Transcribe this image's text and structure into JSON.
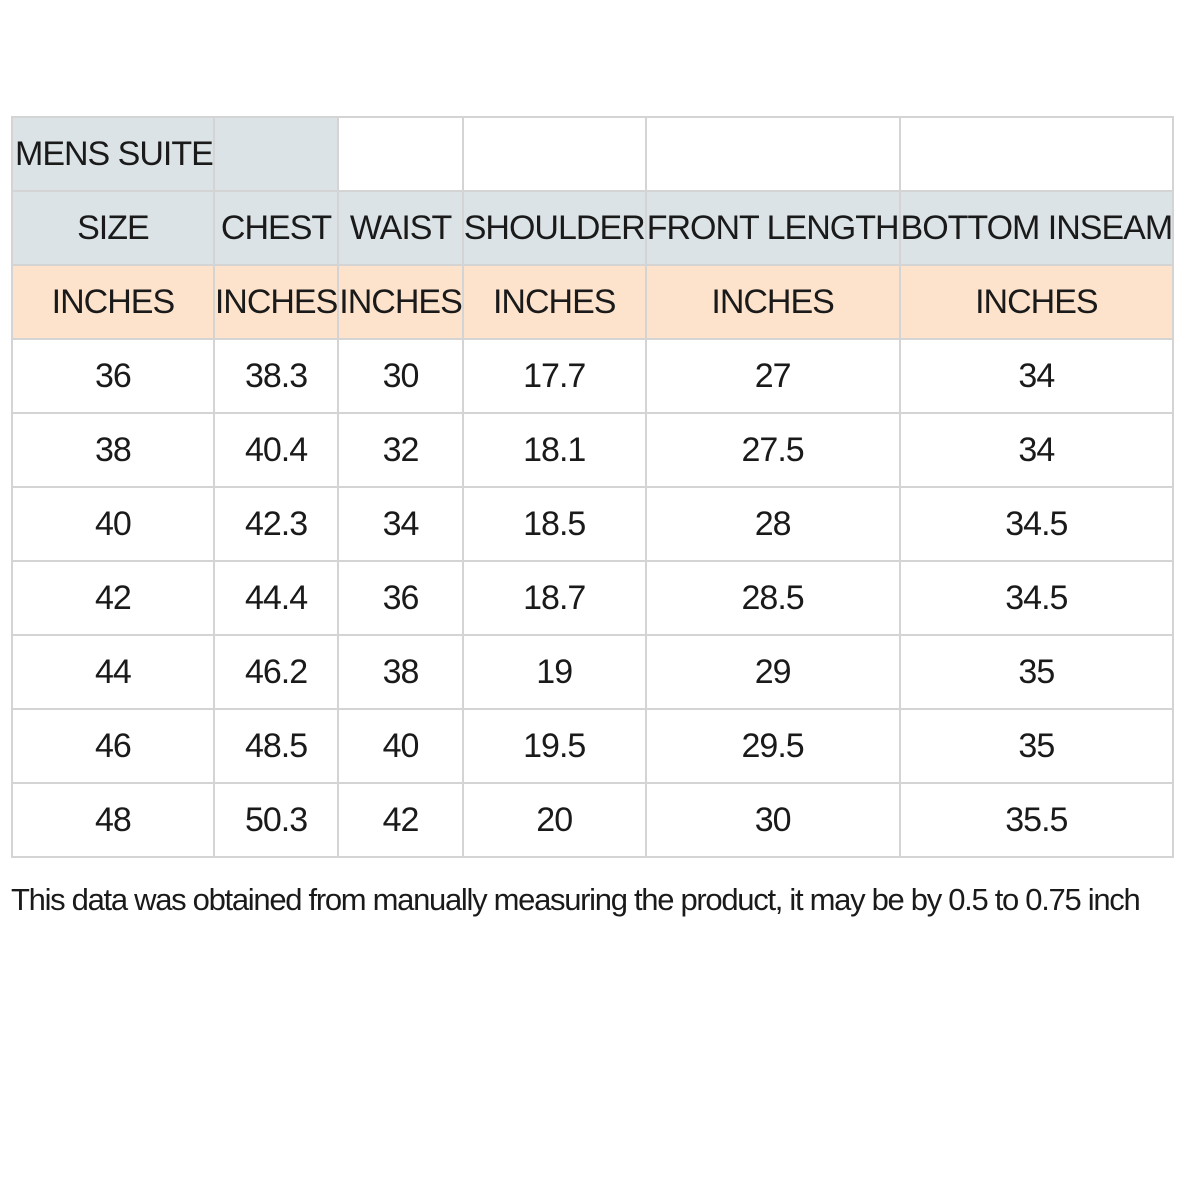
{
  "table": {
    "title": "MENS SUITE",
    "headers": [
      "SIZE",
      "CHEST",
      "WAIST",
      "SHOULDER",
      "FRONT LENGTH",
      "BOTTOM INSEAM"
    ],
    "units": [
      "INCHES",
      "INCHES",
      "INCHES",
      "INCHES",
      "INCHES",
      "INCHES"
    ],
    "rows": [
      [
        "36",
        "38.3",
        "30",
        "17.7",
        "27",
        "34"
      ],
      [
        "38",
        "40.4",
        "32",
        "18.1",
        "27.5",
        "34"
      ],
      [
        "40",
        "42.3",
        "34",
        "18.5",
        "28",
        "34.5"
      ],
      [
        "42",
        "44.4",
        "36",
        "18.7",
        "28.5",
        "34.5"
      ],
      [
        "44",
        "46.2",
        "38",
        "19",
        "29",
        "35"
      ],
      [
        "46",
        "48.5",
        "40",
        "19.5",
        "29.5",
        "35"
      ],
      [
        "48",
        "50.3",
        "42",
        "20",
        "30",
        "35.5"
      ]
    ]
  },
  "footnote": "This data was obtained from manually measuring the product, it may be by 0.5 to 0.75 inch",
  "colors": {
    "header_bg": "#dbe3e6",
    "unit_bg": "#fde3cc",
    "grid": "#d4d4d4"
  }
}
